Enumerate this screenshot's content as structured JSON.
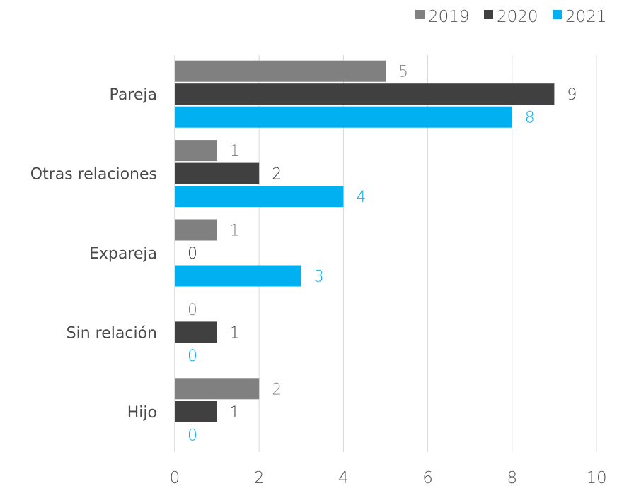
{
  "chart_data": {
    "type": "bar",
    "orientation": "horizontal",
    "categories": [
      "Pareja",
      "Otras relaciones",
      "Expareja",
      "Sin relación",
      "Hijo"
    ],
    "series": [
      {
        "name": "2019",
        "color": "#808080",
        "values": [
          5,
          1,
          1,
          0,
          2
        ]
      },
      {
        "name": "2020",
        "color": "#404040",
        "values": [
          9,
          2,
          0,
          1,
          1
        ]
      },
      {
        "name": "2021",
        "color": "#00b0f0",
        "values": [
          8,
          4,
          3,
          0,
          0
        ]
      }
    ],
    "xlim": [
      0,
      10
    ],
    "xticks": [
      "0",
      "2",
      "4",
      "6",
      "8",
      "10"
    ],
    "grid": true,
    "legend": "top-right",
    "data_labels": true
  }
}
